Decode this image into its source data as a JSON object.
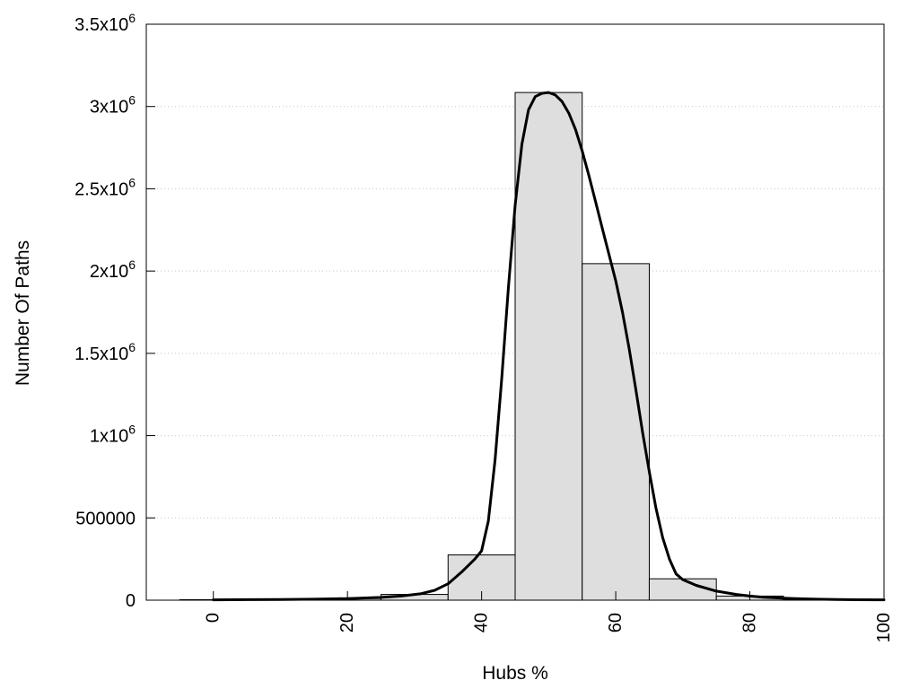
{
  "chart_data": {
    "type": "bar",
    "xlabel": "Hubs %",
    "ylabel": "Number Of Paths",
    "xlim": [
      -10,
      100
    ],
    "ylim": [
      0,
      3500000
    ],
    "x_ticks": [
      {
        "value": 0,
        "label": "0"
      },
      {
        "value": 20,
        "label": "20"
      },
      {
        "value": 40,
        "label": "40"
      },
      {
        "value": 60,
        "label": "60"
      },
      {
        "value": 80,
        "label": "80"
      },
      {
        "value": 100,
        "label": "100"
      }
    ],
    "y_ticks": [
      {
        "value": 0,
        "base": "0",
        "exp": ""
      },
      {
        "value": 500000,
        "base": "500000",
        "exp": ""
      },
      {
        "value": 1000000,
        "base": "1x10",
        "exp": "6"
      },
      {
        "value": 1500000,
        "base": "1.5x10",
        "exp": "6"
      },
      {
        "value": 2000000,
        "base": "2x10",
        "exp": "6"
      },
      {
        "value": 2500000,
        "base": "2.5x10",
        "exp": "6"
      },
      {
        "value": 3000000,
        "base": "3x10",
        "exp": "6"
      },
      {
        "value": 3500000,
        "base": "3.5x10",
        "exp": "6"
      }
    ],
    "grid": {
      "horizontal": true,
      "style": "dotted"
    },
    "histogram": {
      "bin_width": 10,
      "bin_centers": [
        0,
        10,
        20,
        30,
        40,
        50,
        60,
        70,
        80,
        90,
        100
      ],
      "values": [
        3000,
        5000,
        10000,
        35000,
        275000,
        3085000,
        2045000,
        130000,
        25000,
        3000,
        1000
      ],
      "fill_color": "#dedede",
      "edge_color": "#000000"
    },
    "curve": {
      "color": "#000000",
      "x": [
        0,
        5,
        10,
        15,
        20,
        25,
        28,
        31,
        33,
        35,
        37,
        39,
        40,
        41,
        42,
        43,
        44,
        45,
        46,
        47,
        48,
        49,
        50,
        51,
        52,
        53,
        54,
        55,
        56,
        57,
        58,
        59,
        60,
        61,
        62,
        63,
        64,
        65,
        66,
        67,
        68,
        69,
        70,
        72,
        75,
        78,
        80,
        82,
        85,
        88,
        90,
        93,
        96,
        100
      ],
      "y": [
        2000,
        3000,
        4000,
        6000,
        10000,
        17000,
        25000,
        40000,
        60000,
        100000,
        170000,
        250000,
        300000,
        480000,
        850000,
        1350000,
        1900000,
        2400000,
        2770000,
        2980000,
        3060000,
        3080000,
        3085000,
        3070000,
        3030000,
        2960000,
        2860000,
        2730000,
        2580000,
        2420000,
        2260000,
        2100000,
        1940000,
        1750000,
        1530000,
        1280000,
        1020000,
        780000,
        560000,
        380000,
        250000,
        160000,
        125000,
        90000,
        55000,
        35000,
        25000,
        18000,
        12000,
        8000,
        6000,
        4000,
        2500,
        2000
      ]
    }
  }
}
